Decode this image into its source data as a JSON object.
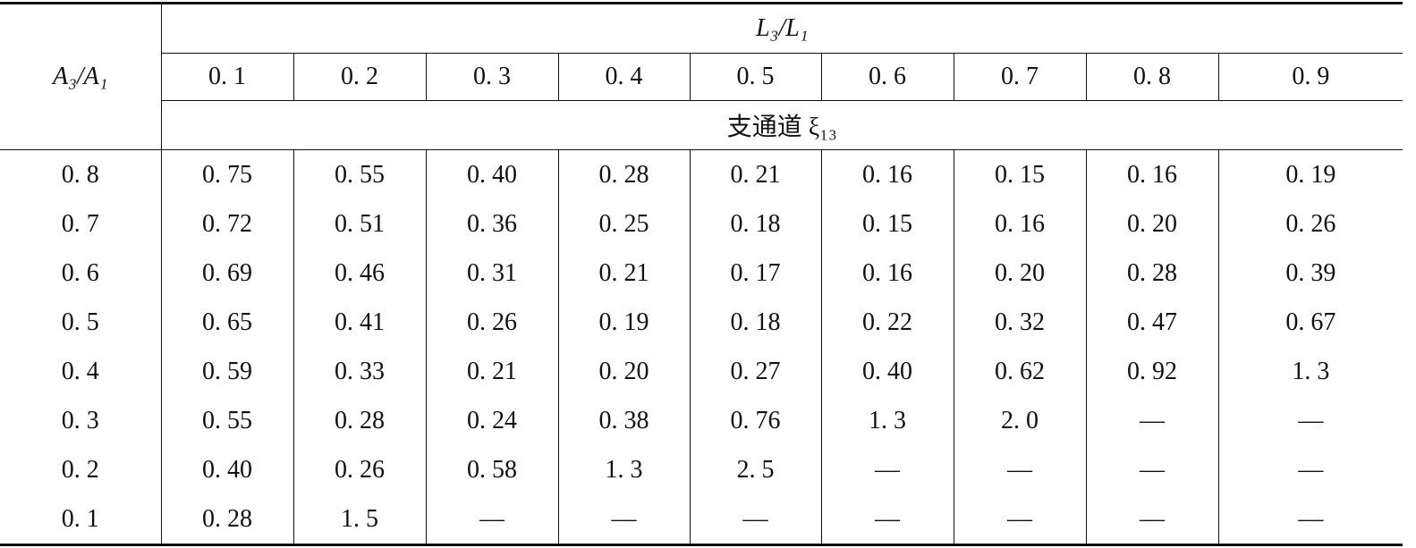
{
  "table": {
    "row_header": "A₃/A₁",
    "column_group": "L₃/L₁",
    "columns": [
      "0. 1",
      "0. 2",
      "0. 3",
      "0. 4",
      "0. 5",
      "0. 6",
      "0. 7",
      "0. 8",
      "0. 9"
    ],
    "subheader": "支通道 ξ₁₃",
    "rows": [
      {
        "label": "0. 8",
        "cells": [
          "0. 75",
          "0. 55",
          "0. 40",
          "0. 28",
          "0. 21",
          "0. 16",
          "0. 15",
          "0. 16",
          "0. 19"
        ]
      },
      {
        "label": "0. 7",
        "cells": [
          "0. 72",
          "0. 51",
          "0. 36",
          "0. 25",
          "0. 18",
          "0. 15",
          "0. 16",
          "0. 20",
          "0. 26"
        ]
      },
      {
        "label": "0. 6",
        "cells": [
          "0. 69",
          "0. 46",
          "0. 31",
          "0. 21",
          "0. 17",
          "0. 16",
          "0. 20",
          "0. 28",
          "0. 39"
        ]
      },
      {
        "label": "0. 5",
        "cells": [
          "0. 65",
          "0. 41",
          "0. 26",
          "0. 19",
          "0. 18",
          "0. 22",
          "0. 32",
          "0. 47",
          "0. 67"
        ]
      },
      {
        "label": "0. 4",
        "cells": [
          "0. 59",
          "0. 33",
          "0. 21",
          "0. 20",
          "0. 27",
          "0. 40",
          "0. 62",
          "0. 92",
          "1. 3"
        ]
      },
      {
        "label": "0. 3",
        "cells": [
          "0. 55",
          "0. 28",
          "0. 24",
          "0. 38",
          "0. 76",
          "1. 3",
          "2. 0",
          "—",
          "—"
        ]
      },
      {
        "label": "0. 2",
        "cells": [
          "0. 40",
          "0. 26",
          "0. 58",
          "1. 3",
          "2. 5",
          "—",
          "—",
          "—",
          "—"
        ]
      },
      {
        "label": "0. 1",
        "cells": [
          "0. 28",
          "1. 5",
          "—",
          "—",
          "—",
          "—",
          "—",
          "—",
          "—"
        ]
      }
    ]
  }
}
